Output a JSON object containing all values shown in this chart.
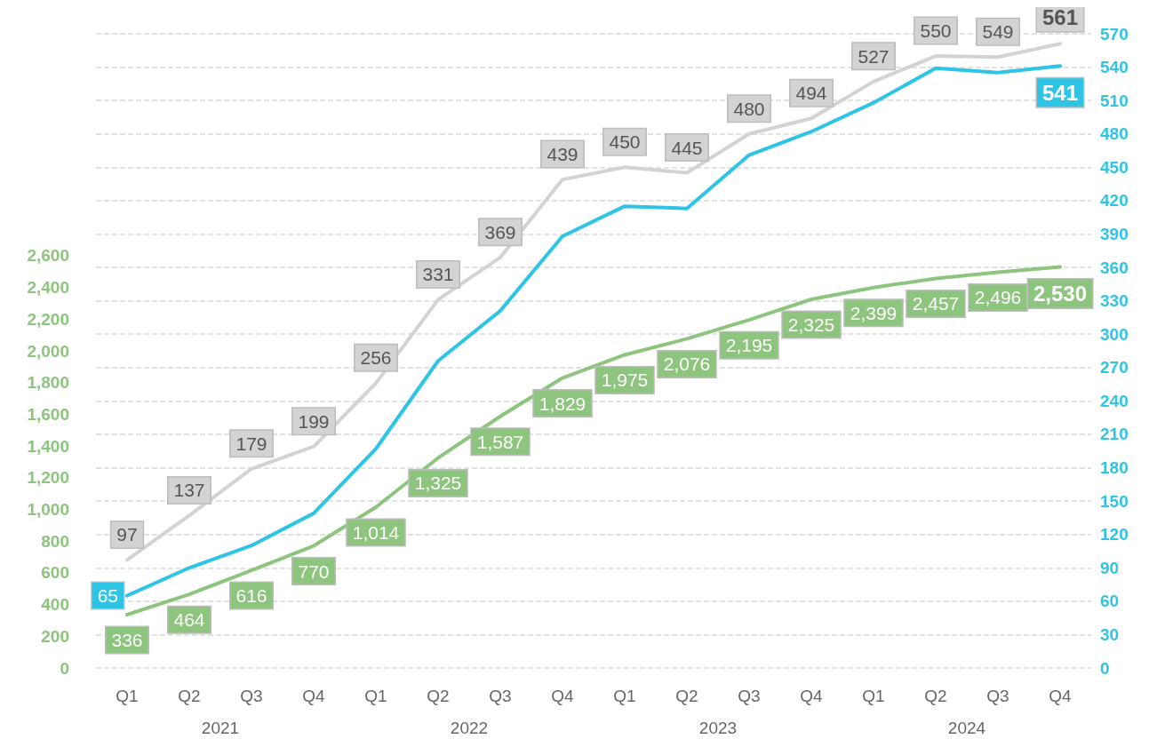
{
  "chart_data": {
    "type": "line",
    "categories": [
      "Q1",
      "Q2",
      "Q3",
      "Q4",
      "Q1",
      "Q2",
      "Q3",
      "Q4",
      "Q1",
      "Q2",
      "Q3",
      "Q4",
      "Q1",
      "Q2",
      "Q3",
      "Q4"
    ],
    "series": [
      {
        "color": "#d3d3d3",
        "axis": "y2",
        "values": [
          97,
          137,
          179,
          199,
          256,
          331,
          369,
          439,
          450,
          445,
          480,
          494,
          527,
          550,
          549,
          561
        ],
        "value_labels": [
          "97",
          "137",
          "179",
          "199",
          "256",
          "331",
          "369",
          "439",
          "450",
          "445",
          "480",
          "494",
          "527",
          "550",
          "549",
          "561"
        ]
      },
      {
        "color": "#2ec4e6",
        "axis": "y2",
        "values": [
          65,
          90,
          110,
          139,
          197,
          276,
          321,
          388,
          415,
          413,
          461,
          482,
          508,
          539,
          535,
          541
        ],
        "value_labels": [
          "65",
          null,
          null,
          null,
          null,
          null,
          null,
          null,
          null,
          null,
          null,
          null,
          null,
          null,
          null,
          "541"
        ]
      },
      {
        "color": "#8dc47e",
        "values": [
          336,
          464,
          616,
          770,
          1014,
          1325,
          1587,
          1829,
          1975,
          2076,
          2195,
          2325,
          2399,
          2457,
          2496,
          2530
        ],
        "value_labels": [
          "336",
          "464",
          "616",
          "770",
          "1,014",
          "1,325",
          "1,587",
          "1,829",
          "1,975",
          "2,076",
          "2,195",
          "2,325",
          "2,399",
          "2,457",
          "2,496",
          "2,530"
        ]
      }
    ],
    "ylim": [
      0,
      4000
    ],
    "yticks": [
      0,
      200,
      400,
      600,
      800,
      {
        "value": 1000,
        "label": "1,000"
      },
      {
        "value": 1200,
        "label": "1,200"
      },
      {
        "value": 1400,
        "label": "1,400"
      },
      {
        "value": 1600,
        "label": "1,600"
      },
      {
        "value": 1800,
        "label": "1,800"
      },
      {
        "value": 2000,
        "label": "2,000"
      },
      {
        "value": 2200,
        "label": "2,200"
      },
      {
        "value": 2400,
        "label": "2,400"
      },
      {
        "value": 2600,
        "label": "2,600"
      }
    ],
    "y2lim": [
      0,
      570
    ],
    "y2ticks": [
      0,
      30,
      60,
      90,
      120,
      150,
      180,
      210,
      240,
      270,
      300,
      330,
      360,
      390,
      420,
      450,
      480,
      510,
      540,
      570
    ],
    "grid": "y2",
    "marker": "none",
    "line_style": "solid",
    "annotations": [
      "2021",
      "2022",
      "2023",
      "2024"
    ]
  }
}
